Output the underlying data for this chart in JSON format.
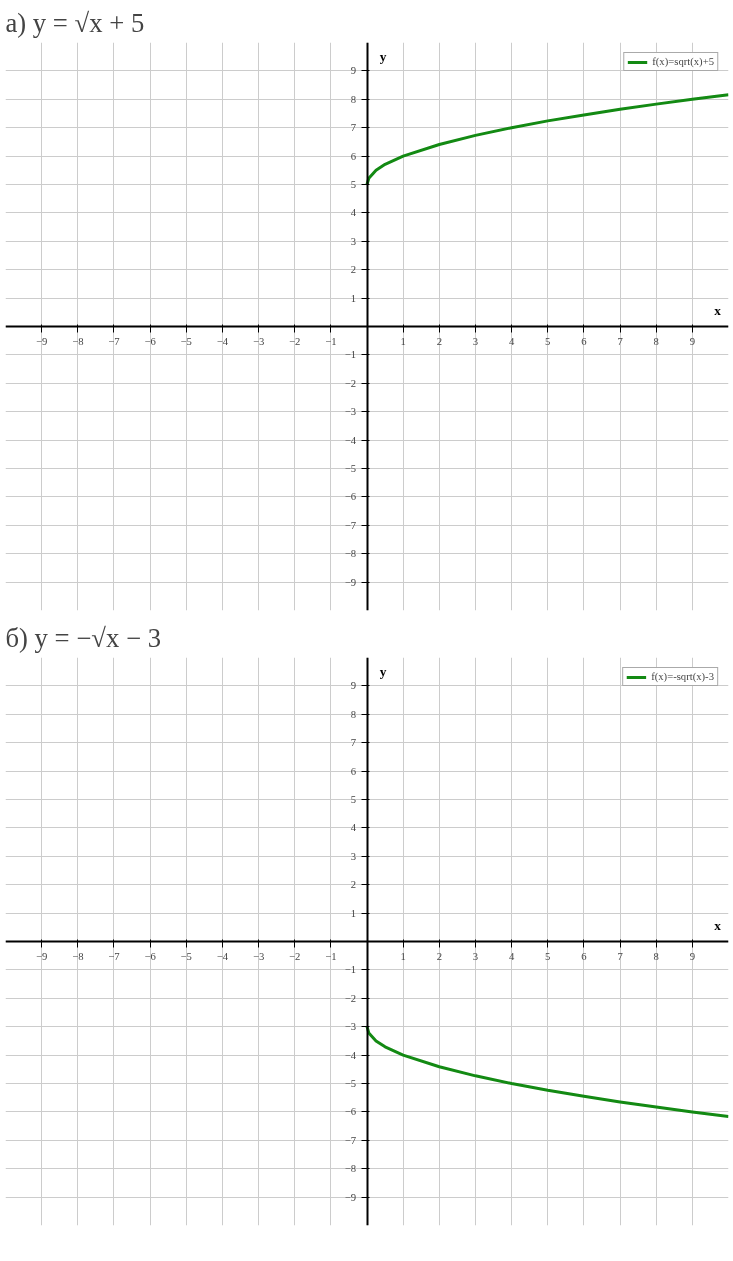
{
  "chart_data": [
    {
      "type": "line",
      "title": "а) y = √x + 5",
      "xlabel": "x",
      "ylabel": "y",
      "x": [
        0,
        0.05,
        0.25,
        0.5,
        1,
        2,
        3,
        4,
        5,
        6,
        7,
        8,
        9,
        10
      ],
      "series": [
        {
          "name": "f(x)=sqrt(x)+5",
          "color": "#138a13",
          "values": [
            5,
            5.22,
            5.5,
            5.71,
            6,
            6.41,
            6.73,
            7,
            7.24,
            7.45,
            7.65,
            7.83,
            8,
            8.16
          ]
        }
      ],
      "xlim": [
        -10,
        10
      ],
      "ylim": [
        -10,
        10
      ],
      "xticks": [
        -9,
        -8,
        -7,
        -6,
        -5,
        -4,
        -3,
        -2,
        -1,
        1,
        2,
        3,
        4,
        5,
        6,
        7,
        8,
        9
      ],
      "yticks": [
        -9,
        -8,
        -7,
        -6,
        -5,
        -4,
        -3,
        -2,
        -1,
        1,
        2,
        3,
        4,
        5,
        6,
        7,
        8,
        9
      ],
      "grid": true,
      "legend": "top right"
    },
    {
      "type": "line",
      "title": "б) y = −√x − 3",
      "xlabel": "x",
      "ylabel": "y",
      "x": [
        0,
        0.05,
        0.25,
        0.5,
        1,
        2,
        3,
        4,
        5,
        6,
        7,
        8,
        9,
        10
      ],
      "series": [
        {
          "name": "f(x)=-sqrt(x)-3",
          "color": "#138a13",
          "values": [
            -3,
            -3.22,
            -3.5,
            -3.71,
            -4,
            -4.41,
            -4.73,
            -5,
            -5.24,
            -5.45,
            -5.65,
            -5.83,
            -6,
            -6.16
          ]
        }
      ],
      "xlim": [
        -10,
        10
      ],
      "ylim": [
        -10,
        10
      ],
      "xticks": [
        -9,
        -8,
        -7,
        -6,
        -5,
        -4,
        -3,
        -2,
        -1,
        1,
        2,
        3,
        4,
        5,
        6,
        7,
        8,
        9
      ],
      "yticks": [
        -9,
        -8,
        -7,
        -6,
        -5,
        -4,
        -3,
        -2,
        -1,
        1,
        2,
        3,
        4,
        5,
        6,
        7,
        8,
        9
      ],
      "grid": true,
      "legend": "top right"
    }
  ]
}
